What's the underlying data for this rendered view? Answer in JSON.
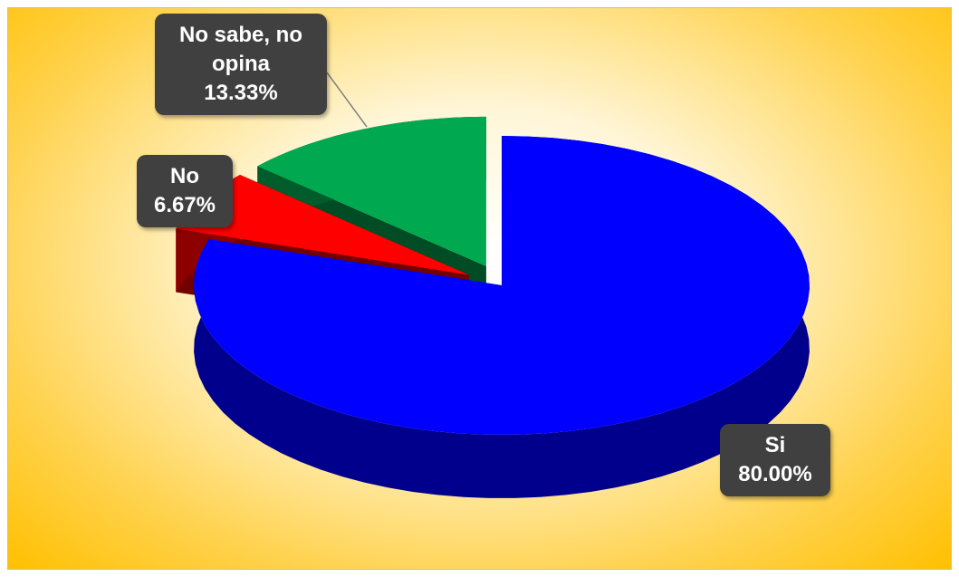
{
  "chart_data": {
    "type": "pie3d",
    "categories": [
      "Si",
      "No",
      "No sabe, no opina"
    ],
    "values": [
      80,
      6.67,
      13.33
    ],
    "value_labels": [
      "80.00%",
      "6.67%",
      "13.33%"
    ],
    "colors": [
      "#0000ff",
      "#ff0000",
      "#00a84f"
    ],
    "exploded": [
      false,
      true,
      true
    ]
  }
}
